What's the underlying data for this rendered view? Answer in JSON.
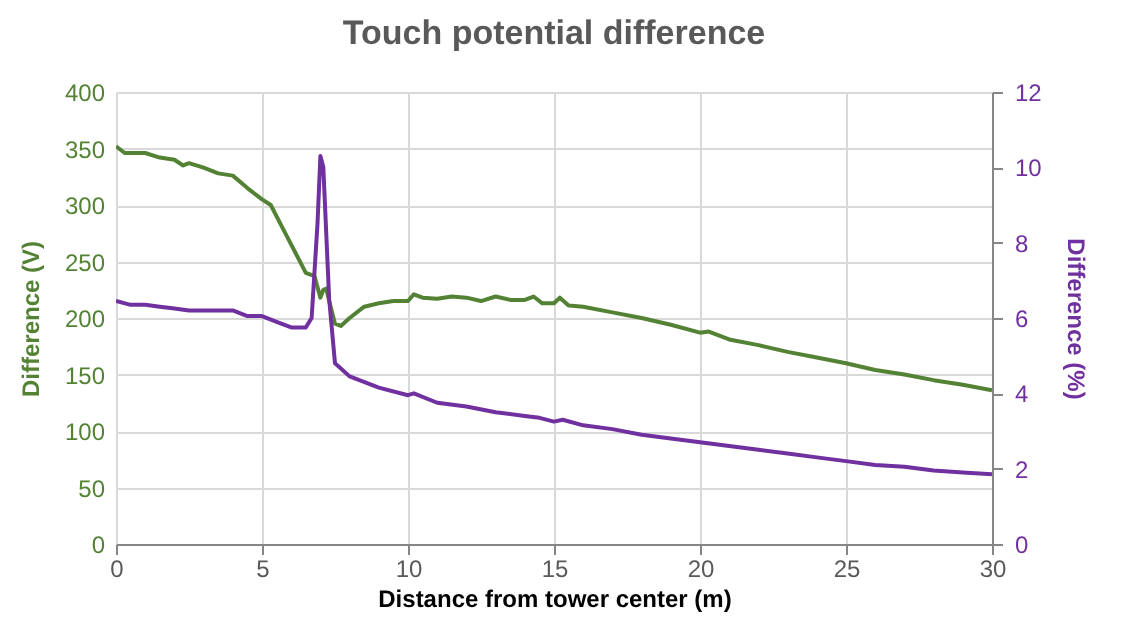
{
  "chart_data": {
    "type": "line",
    "title": "Touch potential difference",
    "xlabel": "Distance  from tower center (m)",
    "ylabel": "Difference (V)",
    "y2label": "Difference (%)",
    "xlim": [
      0,
      30
    ],
    "xticks": [
      0,
      5,
      10,
      15,
      20,
      25,
      30
    ],
    "ylim": [
      0,
      400
    ],
    "yticks": [
      0,
      50,
      100,
      150,
      200,
      250,
      300,
      350,
      400
    ],
    "y2lim": [
      0,
      12
    ],
    "y2ticks": [
      0,
      2,
      4,
      6,
      8,
      10,
      12
    ],
    "grid": true,
    "series": [
      {
        "color": "#548235",
        "x": [
          0,
          0.3,
          1,
          1.5,
          2,
          2.3,
          2.5,
          3,
          3.5,
          4,
          4.5,
          5,
          5.3,
          5.5,
          6,
          6.5,
          6.8,
          7,
          7.1,
          7.2,
          7.3,
          7.5,
          7.7,
          8,
          8.5,
          9,
          9.5,
          10,
          10.2,
          10.5,
          11,
          11.5,
          12,
          12.5,
          13,
          13.5,
          14,
          14.3,
          14.6,
          15,
          15.2,
          15.5,
          16,
          17,
          18,
          19,
          20,
          20.3,
          21,
          22,
          23,
          24,
          25,
          26,
          27,
          28,
          29,
          30
        ],
        "values": [
          352,
          346,
          346,
          342,
          340,
          335,
          337,
          333,
          328,
          326,
          315,
          305,
          300,
          290,
          265,
          240,
          237,
          218,
          225,
          226,
          215,
          195,
          193,
          200,
          210,
          213,
          215,
          215,
          221,
          218,
          217,
          219,
          218,
          215,
          219,
          216,
          216,
          219,
          213,
          213,
          218,
          211,
          210,
          205,
          200,
          194,
          187,
          188,
          181,
          176,
          170,
          165,
          160,
          154,
          150,
          145,
          141,
          136
        ]
      },
      {
        "color": "#7030a0",
        "axis": "y2",
        "x": [
          0,
          0.5,
          1,
          1.5,
          2,
          2.5,
          3,
          4,
          4.5,
          5,
          5.5,
          6,
          6.5,
          6.7,
          6.9,
          7,
          7.1,
          7.3,
          7.5,
          8,
          9,
          10,
          10.2,
          11,
          12,
          13,
          14,
          14.5,
          15,
          15.3,
          16,
          17,
          18,
          19,
          20,
          21,
          22,
          23,
          24,
          25,
          26,
          27,
          28,
          29,
          30
        ],
        "values": [
          6.45,
          6.35,
          6.35,
          6.3,
          6.25,
          6.2,
          6.2,
          6.2,
          6.05,
          6.05,
          5.9,
          5.75,
          5.75,
          6.0,
          8.5,
          10.3,
          10.0,
          6.5,
          4.8,
          4.45,
          4.15,
          3.95,
          4.0,
          3.75,
          3.65,
          3.5,
          3.4,
          3.35,
          3.25,
          3.3,
          3.15,
          3.05,
          2.9,
          2.8,
          2.7,
          2.6,
          2.5,
          2.4,
          2.3,
          2.2,
          2.1,
          2.05,
          1.95,
          1.9,
          1.85
        ]
      }
    ]
  }
}
